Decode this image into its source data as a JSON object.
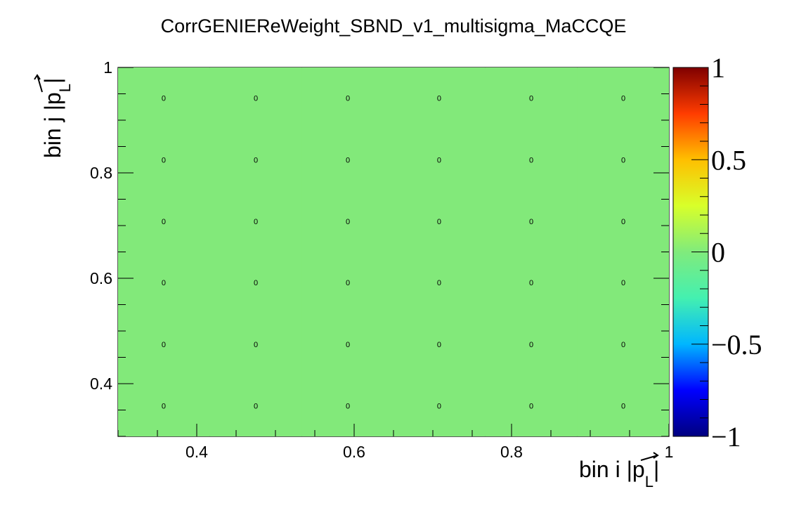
{
  "chart_data": {
    "type": "heatmap",
    "title": "CorrGENIEReWeight_SBND_v1_multisigma_MaCCQE",
    "xlabel": {
      "main": "bin i |",
      "vec": "p",
      "sub": "L",
      "close": "|"
    },
    "ylabel": {
      "main": "bin j |",
      "vec": "p",
      "sub": "L",
      "close": "|"
    },
    "xlim": [
      0.3,
      1.0
    ],
    "ylim": [
      0.3,
      1.0
    ],
    "x_ticks": [
      0.4,
      0.6,
      0.8,
      1
    ],
    "x_tick_labels": [
      "0.4",
      "0.6",
      "0.8",
      "1"
    ],
    "y_ticks": [
      0.4,
      0.6,
      0.8,
      1
    ],
    "y_tick_labels": [
      "0.4",
      "0.6",
      "0.8",
      "1"
    ],
    "x_bin_centers": [
      0.358,
      0.475,
      0.592,
      0.708,
      0.825,
      0.942
    ],
    "y_bin_centers": [
      0.358,
      0.475,
      0.592,
      0.708,
      0.825,
      0.942
    ],
    "values": [
      [
        0,
        0,
        0,
        0,
        0,
        0
      ],
      [
        0,
        0,
        0,
        0,
        0,
        0
      ],
      [
        0,
        0,
        0,
        0,
        0,
        0
      ],
      [
        0,
        0,
        0,
        0,
        0,
        0
      ],
      [
        0,
        0,
        0,
        0,
        0,
        0
      ],
      [
        0,
        0,
        0,
        0,
        0,
        0
      ]
    ],
    "cell_labels": [
      [
        "0",
        "0",
        "0",
        "0",
        "0",
        "0"
      ],
      [
        "0",
        "0",
        "0",
        "0",
        "0",
        "0"
      ],
      [
        "0",
        "0",
        "0",
        "0",
        "0",
        "0"
      ],
      [
        "0",
        "0",
        "0",
        "0",
        "0",
        "0"
      ],
      [
        "0",
        "0",
        "0",
        "0",
        "0",
        "0"
      ],
      [
        "0",
        "0",
        "0",
        "0",
        "0",
        "0"
      ]
    ],
    "zlim": [
      -1,
      1
    ],
    "colorbar_ticks": [
      1,
      0.5,
      0,
      -0.5,
      -1
    ],
    "colorbar_tick_labels": [
      "1",
      "0.5",
      "0",
      "−0.5",
      "−1"
    ],
    "colorscale": [
      "#00007f",
      "#0000ff",
      "#00b6ff",
      "#44f0b0",
      "#80eb7c",
      "#d8ff2a",
      "#ffbf00",
      "#ff3c00",
      "#7f0000"
    ],
    "fill_color": "#82e97a",
    "grid": false,
    "legend": "none"
  }
}
